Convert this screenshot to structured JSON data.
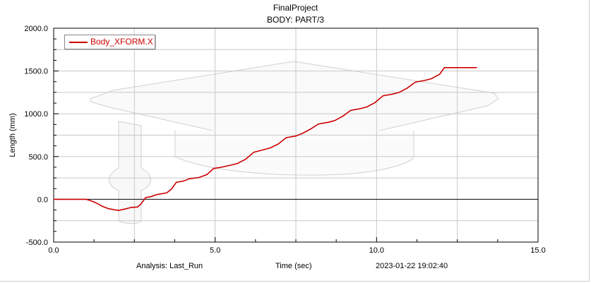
{
  "header": {
    "title": "FinalProject",
    "subtitle": "BODY: PART/3"
  },
  "footer": {
    "analysis": "Analysis:  Last_Run",
    "time_label": "Time (sec)",
    "timestamp": "2023-01-22 19:02:40"
  },
  "colors": {
    "series": "#cc0000",
    "grid": "#c8c8c8",
    "background_model": "#d0d0d0"
  },
  "chart_data": {
    "type": "line",
    "title": "FinalProject",
    "subtitle": "BODY: PART/3",
    "xlabel": "Time (sec)",
    "ylabel": "Length (mm)",
    "xlim": [
      0,
      15
    ],
    "ylim": [
      -500,
      2000
    ],
    "x_ticks": [
      0,
      5,
      10,
      15
    ],
    "x_tick_labels": [
      "0.0",
      "5.0",
      "10.0",
      "15.0"
    ],
    "y_ticks": [
      -500,
      0,
      500,
      1000,
      1500,
      2000
    ],
    "y_tick_labels": [
      "-500.0",
      "0.0",
      "500.0",
      "1000.0",
      "1500.0",
      "2000.0"
    ],
    "grid": true,
    "legend_position": "top-left",
    "series": [
      {
        "name": "Body_XFORM.X",
        "x": [
          0,
          1.0,
          1.1,
          1.3,
          1.5,
          1.7,
          2.0,
          2.2,
          2.4,
          2.6,
          2.7,
          2.85,
          3.0,
          3.2,
          3.5,
          3.65,
          3.8,
          4.0,
          4.2,
          4.5,
          4.75,
          4.95,
          5.2,
          5.5,
          5.7,
          5.95,
          6.2,
          6.5,
          6.7,
          6.95,
          7.2,
          7.5,
          7.7,
          7.95,
          8.2,
          8.5,
          8.7,
          8.95,
          9.2,
          9.5,
          9.7,
          9.95,
          10.2,
          10.5,
          10.7,
          10.95,
          11.2,
          11.5,
          11.7,
          11.95,
          12.1,
          12.5,
          13.1
        ],
        "y": [
          0,
          0,
          -10,
          -40,
          -80,
          -110,
          -130,
          -115,
          -95,
          -90,
          -55,
          20,
          30,
          55,
          75,
          120,
          200,
          210,
          240,
          255,
          290,
          360,
          375,
          400,
          420,
          470,
          550,
          580,
          600,
          645,
          720,
          740,
          770,
          820,
          880,
          900,
          920,
          970,
          1040,
          1060,
          1080,
          1130,
          1210,
          1230,
          1250,
          1300,
          1370,
          1390,
          1410,
          1460,
          1540,
          1540,
          1540
        ]
      }
    ]
  }
}
